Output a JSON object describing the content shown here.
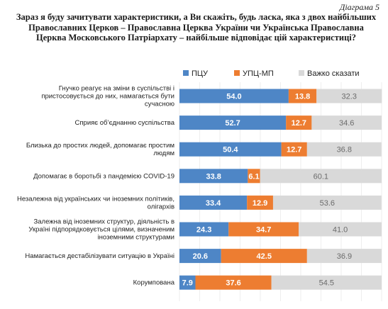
{
  "figure_label": "Діаграма 5",
  "colors": {
    "ptsu": "#4E86C6",
    "upts_mp": "#ED7D31",
    "hard_to_say": "#D9D9D9"
  },
  "chart_data": {
    "type": "bar",
    "orientation": "horizontal",
    "stacked": true,
    "title": "Зараз я буду зачитувати характеристики, а Ви скажіть, будь ласка, яка з двох найбільших Православних Церков – Православна Церква України чи Українська Православна Церква Московського Патріархату – найбільше відповідає цій характеристиці?",
    "xlim": [
      0,
      100
    ],
    "legend_position": "top",
    "categories": [
      "Гнучко реагує на зміни в суспільстві і пристосовується до них, намагається бути сучасною",
      "Сприяє об’єднанню суспільства",
      "Близька до простих людей, допомагає простим людям",
      "Допомагає в боротьбі з пандемією COVID-19",
      "Незалежна від українських чи іноземних політиків, олігархів",
      "Залежна від іноземних структур, діяльність в Україні підпорядковується цілями, визначеним іноземними структурами",
      "Намагається дестабілізувати ситуацію в Україні",
      "Корумпована"
    ],
    "category_lines": [
      [
        "Гнучко реагує на зміни в суспільстві і",
        "пристосовується до них, намагається бути",
        "сучасною"
      ],
      [
        "Сприяє об’єднанню суспільства"
      ],
      [
        "Близька до простих людей, допомагає простим",
        "людям"
      ],
      [
        "Допомагає в боротьбі з пандемією COVID-19"
      ],
      [
        "Незалежна від українських чи іноземних політиків,",
        "олігархів"
      ],
      [
        "Залежна від іноземних структур, діяльність в",
        "Україні підпорядковується цілями, визначеним",
        "іноземними структурами"
      ],
      [
        "Намагається дестабілізувати ситуацію в Україні"
      ],
      [
        "Корумпована"
      ]
    ],
    "series": [
      {
        "name": "ПЦУ",
        "values": [
          54.0,
          52.7,
          50.4,
          33.8,
          33.4,
          24.3,
          20.6,
          7.9
        ]
      },
      {
        "name": "УПЦ-МП",
        "values": [
          13.8,
          12.7,
          12.7,
          6.1,
          12.9,
          34.7,
          42.5,
          37.6
        ]
      },
      {
        "name": "Важко сказати",
        "values": [
          32.3,
          34.6,
          36.8,
          60.1,
          53.6,
          41.0,
          36.9,
          54.5
        ]
      }
    ]
  }
}
